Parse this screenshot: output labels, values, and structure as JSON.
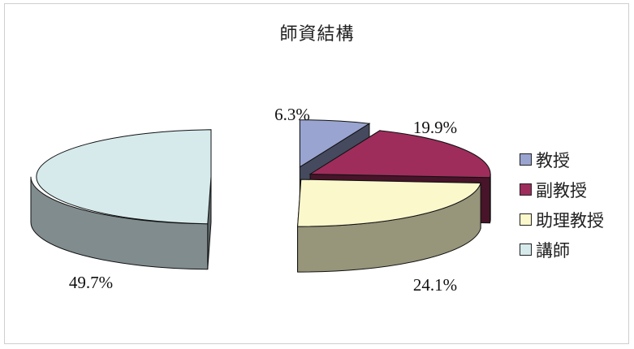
{
  "chart_data": {
    "type": "pie",
    "style": "3d-exploded",
    "title": "師資結構",
    "categories": [
      "教授",
      "副教授",
      "助理教授",
      "講師"
    ],
    "values": [
      6.3,
      19.9,
      24.1,
      49.7
    ],
    "unit": "%",
    "data_labels": [
      "6.3%",
      "19.9%",
      "24.1%",
      "49.7%"
    ],
    "colors": [
      "#9aa4d0",
      "#9e2d5c",
      "#fbf8cc",
      "#d6eaec"
    ],
    "legend_position": "right"
  }
}
